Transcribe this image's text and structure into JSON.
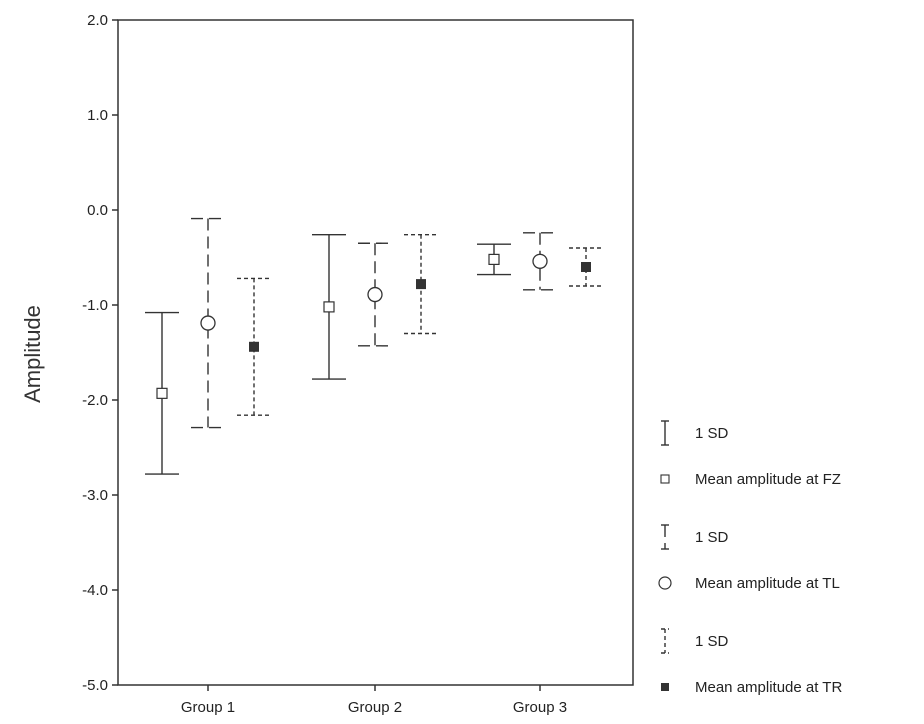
{
  "chart_data": {
    "type": "errorbar",
    "ylabel": "Amplitude",
    "xlabel": "",
    "ylim": [
      -5.0,
      2.0
    ],
    "y_ticks": [
      2.0,
      1.0,
      0.0,
      -1.0,
      -2.0,
      -3.0,
      -4.0,
      -5.0
    ],
    "y_tick_labels": [
      "2.0",
      "1.0",
      "0.0",
      "-1.0",
      "-2.0",
      "-3.0",
      "-4.0",
      "-5.0"
    ],
    "categories": [
      "Group 1",
      "Group 2",
      "Group 3"
    ],
    "grid": false,
    "legend_position": "right",
    "series": [
      {
        "name": "Mean amplitude at FZ",
        "sd_label": "1 SD",
        "marker": "open-square",
        "line_style": "solid",
        "means": [
          -1.93,
          -1.02,
          -0.52
        ],
        "sd": [
          0.85,
          0.76,
          0.16
        ]
      },
      {
        "name": "Mean amplitude at TL",
        "sd_label": "1 SD",
        "marker": "open-circle",
        "line_style": "dashed",
        "means": [
          -1.19,
          -0.89,
          -0.54
        ],
        "sd": [
          1.1,
          0.54,
          0.3
        ]
      },
      {
        "name": "Mean amplitude at TR",
        "sd_label": "1 SD",
        "marker": "filled-square",
        "line_style": "dotted",
        "means": [
          -1.44,
          -0.78,
          -0.6
        ],
        "sd": [
          0.72,
          0.52,
          0.2
        ]
      }
    ]
  }
}
